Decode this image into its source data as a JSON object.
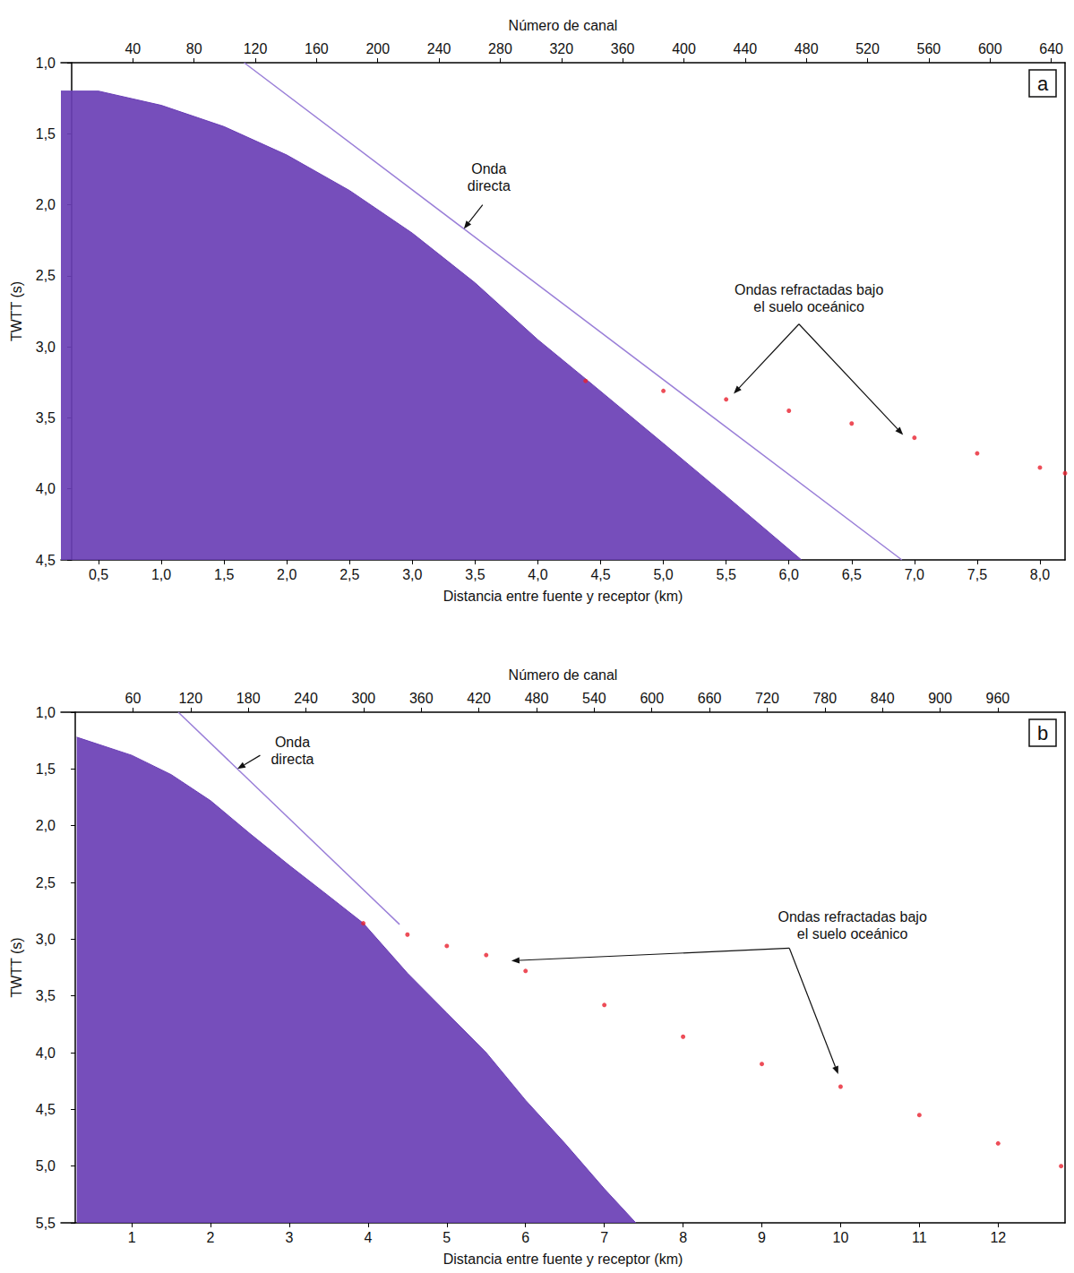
{
  "chart_data": [
    {
      "panel": "a",
      "type": "line",
      "x2label": "Número de canal",
      "xlabel": "Distancia entre fuente y receptor (km)",
      "ylabel": "TWTT (s)",
      "xlim": [
        0.2,
        8.2
      ],
      "xticks": [
        {
          "value": 0.5,
          "label": "0,5"
        },
        {
          "value": 1.0,
          "label": "1,0"
        },
        {
          "value": 1.5,
          "label": "1,5"
        },
        {
          "value": 2.0,
          "label": "2,0"
        },
        {
          "value": 2.5,
          "label": "2,5"
        },
        {
          "value": 3.0,
          "label": "3,0"
        },
        {
          "value": 3.5,
          "label": "3,5"
        },
        {
          "value": 4.0,
          "label": "4,0"
        },
        {
          "value": 4.5,
          "label": "4,5"
        },
        {
          "value": 5.0,
          "label": "5,0"
        },
        {
          "value": 5.5,
          "label": "5,5"
        },
        {
          "value": 6.0,
          "label": "6,0"
        },
        {
          "value": 6.5,
          "label": "6,5"
        },
        {
          "value": 7.0,
          "label": "7,0"
        },
        {
          "value": 7.5,
          "label": "7,5"
        },
        {
          "value": 8.0,
          "label": "8,0"
        }
      ],
      "x2lim": [
        -7,
        649
      ],
      "x2ticks": [
        40,
        80,
        120,
        160,
        200,
        240,
        280,
        320,
        360,
        400,
        440,
        480,
        520,
        560,
        600,
        640
      ],
      "ylim": [
        1.0,
        4.5
      ],
      "yticks": [
        {
          "value": 1.0,
          "label": "1,0"
        },
        {
          "value": 1.5,
          "label": "1,5"
        },
        {
          "value": 2.0,
          "label": "2,0"
        },
        {
          "value": 2.5,
          "label": "2,5"
        },
        {
          "value": 3.0,
          "label": "3,0"
        },
        {
          "value": 3.5,
          "label": "3,5"
        },
        {
          "value": 4.0,
          "label": "4,0"
        },
        {
          "value": 4.5,
          "label": "4,5"
        }
      ],
      "series": [
        {
          "type": "area",
          "color": "#6a3fb5",
          "x": [
            0.2,
            0.5,
            1.0,
            1.5,
            2.0,
            2.5,
            3.0,
            3.5,
            4.0,
            4.4,
            5.0,
            5.5,
            6.1
          ],
          "values": [
            1.2,
            1.2,
            1.3,
            1.45,
            1.65,
            1.9,
            2.2,
            2.55,
            2.95,
            3.24,
            3.68,
            4.05,
            4.5
          ]
        },
        {
          "type": "line",
          "color": "#9a7fd8",
          "x": [
            1.66,
            6.9
          ],
          "values": [
            1.0,
            4.5
          ]
        },
        {
          "type": "scatter",
          "color": "#e8202e",
          "marker": "circle",
          "x": [
            4.38,
            5.0,
            5.5,
            6.0,
            6.5,
            7.0,
            7.5,
            8.0,
            8.2
          ],
          "values": [
            3.24,
            3.31,
            3.37,
            3.45,
            3.54,
            3.64,
            3.75,
            3.85,
            3.89
          ]
        }
      ],
      "annotations": [
        {
          "text": "Onda directa",
          "x": 3.61,
          "y": 1.81,
          "arrows": [
            {
              "from": [
                3.56,
                2.0
              ],
              "to": [
                3.41,
                2.17
              ]
            }
          ]
        },
        {
          "text": "Ondas refractadas bajo el suelo oceánico",
          "x": 6.16,
          "y": 2.66,
          "arrows": [
            {
              "from": [
                6.08,
                2.84
              ],
              "to": [
                5.56,
                3.33
              ]
            },
            {
              "from": [
                6.08,
                2.84
              ],
              "to": [
                6.91,
                3.62
              ]
            }
          ]
        }
      ]
    },
    {
      "panel": "b",
      "type": "line",
      "x2label": "Número de canal",
      "xlabel": "Distancia entre fuente y receptor (km)",
      "ylabel": "TWTT (s)",
      "xlim": [
        0.1,
        12.85
      ],
      "xticks": [
        1,
        2,
        3,
        4,
        5,
        6,
        7,
        8,
        9,
        10,
        11,
        12
      ],
      "x2lim": [
        -15,
        1030
      ],
      "x2ticks": [
        60,
        120,
        180,
        240,
        300,
        360,
        420,
        480,
        540,
        600,
        660,
        720,
        780,
        840,
        900,
        960
      ],
      "ylim": [
        1.0,
        5.5
      ],
      "yticks": [
        {
          "value": 1.0,
          "label": "1,0"
        },
        {
          "value": 1.5,
          "label": "1,5"
        },
        {
          "value": 2.0,
          "label": "2,0"
        },
        {
          "value": 2.5,
          "label": "2,5"
        },
        {
          "value": 3.0,
          "label": "3,0"
        },
        {
          "value": 3.5,
          "label": "3,5"
        },
        {
          "value": 4.0,
          "label": "4,0"
        },
        {
          "value": 4.5,
          "label": "4,5"
        },
        {
          "value": 5.0,
          "label": "5,0"
        },
        {
          "value": 5.5,
          "label": "5,5"
        }
      ],
      "series": [
        {
          "type": "area",
          "color": "#6a3fb5",
          "x": [
            0.3,
            1.0,
            1.5,
            2.0,
            2.5,
            3.0,
            3.5,
            3.94,
            4.5,
            5.0,
            5.5,
            6.0,
            6.5,
            7.0,
            7.4
          ],
          "values": [
            1.22,
            1.38,
            1.55,
            1.78,
            2.07,
            2.35,
            2.62,
            2.86,
            3.3,
            3.65,
            4.0,
            4.42,
            4.8,
            5.2,
            5.5
          ]
        },
        {
          "type": "line",
          "color": "#9a7fd8",
          "x": [
            1.59,
            4.4
          ],
          "values": [
            1.0,
            2.87
          ]
        },
        {
          "type": "scatter",
          "color": "#e8202e",
          "marker": "circle",
          "x": [
            3.94,
            4.5,
            5.0,
            5.5,
            6.0,
            7.0,
            8.0,
            9.0,
            10.0,
            11.0,
            12.0,
            12.8
          ],
          "values": [
            2.86,
            2.96,
            3.06,
            3.14,
            3.28,
            3.58,
            3.86,
            4.1,
            4.3,
            4.55,
            4.8,
            5.0
          ]
        }
      ],
      "annotations": [
        {
          "text": "Onda directa",
          "x": 3.04,
          "y": 1.34,
          "arrows": [
            {
              "from": [
                2.63,
                1.38
              ],
              "to": [
                2.34,
                1.5
              ]
            }
          ]
        },
        {
          "text": "Ondas refractadas bajo el suelo oceánico",
          "x": 10.15,
          "y": 2.88,
          "arrows": [
            {
              "from": [
                9.35,
                3.08
              ],
              "to": [
                5.82,
                3.19
              ]
            },
            {
              "from": [
                9.35,
                3.08
              ],
              "to": [
                9.97,
                4.19
              ]
            }
          ]
        }
      ]
    }
  ]
}
